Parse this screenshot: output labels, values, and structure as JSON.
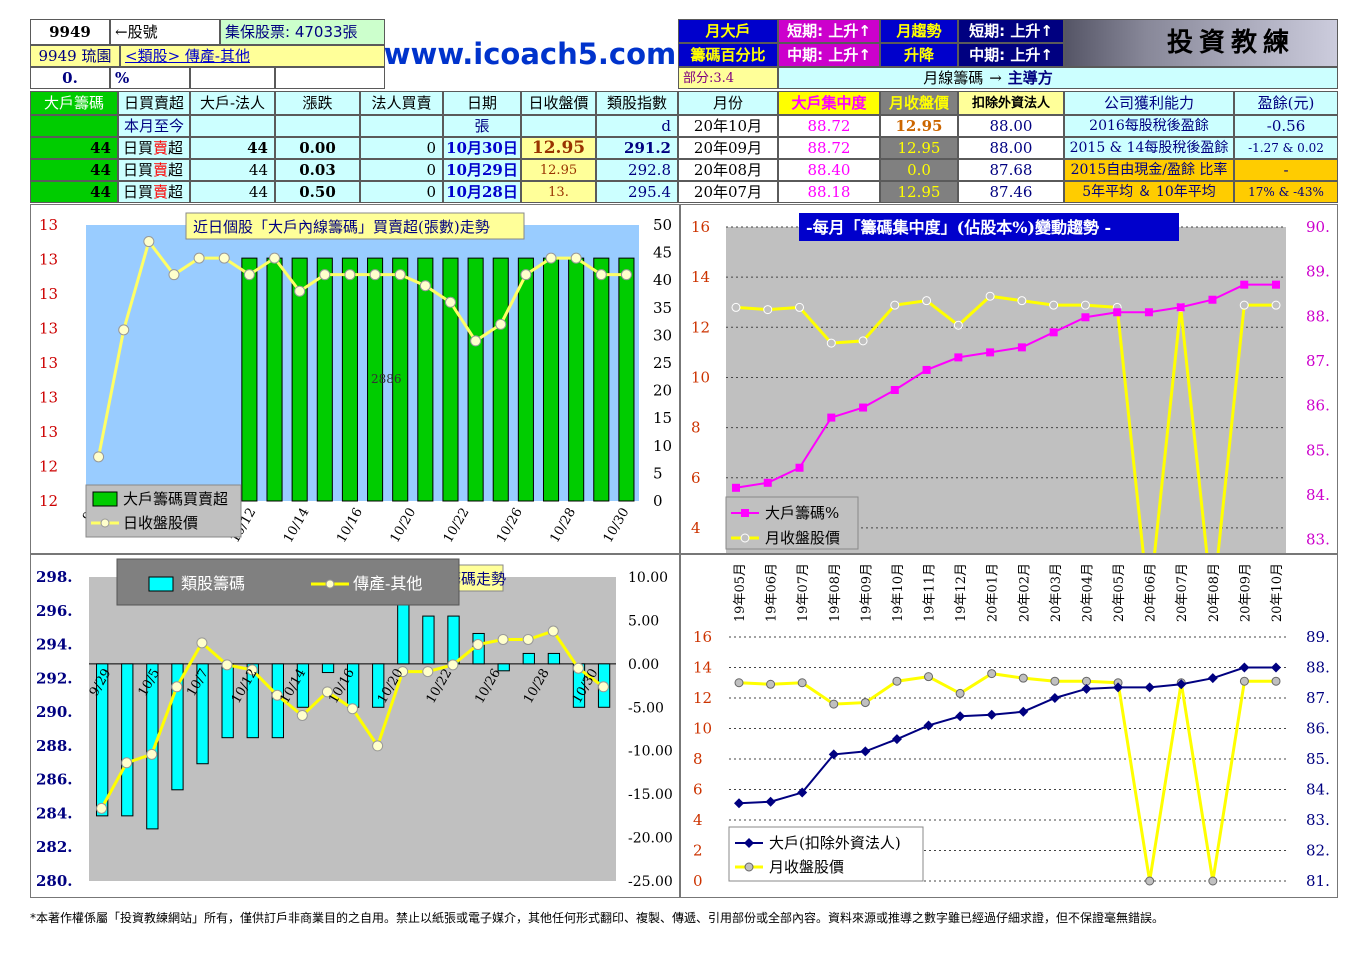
{
  "header": {
    "stock_code": "9949",
    "code_arrow": "←股號",
    "custody_shares": "集保股票: 47033張",
    "stock_name": "9949 琉園",
    "industry_link": "<類股> 傳產-其他",
    "pct_value": "0.",
    "pct_unit": "%",
    "website": "www.icoach5.com",
    "monthly_big_label_1": "月大戶",
    "monthly_big_label_2": "籌碼百分比",
    "short_term_up": "短期: 上升↑",
    "mid_term_up": "中期: 上升↑",
    "monthly_trend_1": "月趨勢",
    "monthly_trend_2": "升降",
    "short_term_up_2": "短期: 上升↑",
    "mid_term_up_2": "中期: 上升↑",
    "logo_text": "投資教練",
    "part_label": "部分:3.4",
    "monthly_chip_label": "月線籌碼",
    "monthly_chip_arrow": "→",
    "monthly_chip_value": "主導方"
  },
  "colors": {
    "green": "#00cc00",
    "yellow": "#ffff00",
    "pink": "#ff00ff",
    "cyan": "#00ffff",
    "navy": "#000080",
    "grey": "#c0c0c0",
    "chart_bg": "#c0c0c0",
    "blue_bg": "#99ccff"
  },
  "table": {
    "headers": [
      "大戶籌碼",
      "日買賣超",
      "大戶-法人",
      "漲跌",
      "法人買賣",
      "日期",
      "日收盤價",
      "類股指數"
    ],
    "ytd_row": [
      "",
      "本月至今",
      "",
      "",
      "",
      "張",
      "",
      "d"
    ],
    "rows": [
      {
        "big": "44",
        "label_pre": "日買",
        "label_red": "賣",
        "label_post": "超",
        "inst": "44",
        "chg": "0.00",
        "legal": "0",
        "date": "10月30日",
        "close": "12.95",
        "index": "291.2"
      },
      {
        "big": "44",
        "label_pre": "日買",
        "label_red": "賣",
        "label_post": "超",
        "inst": "44",
        "chg": "0.03",
        "legal": "0",
        "date": "10月29日",
        "close": "12.95",
        "index": "292.8"
      },
      {
        "big": "44",
        "label_pre": "日買",
        "label_red": "賣",
        "label_post": "超",
        "inst": "44",
        "chg": "0.50",
        "legal": "0",
        "date": "10月28日",
        "close": "13.",
        "index": "295.4"
      }
    ],
    "month_headers": [
      "月份",
      "大戶集中度",
      "月收盤價",
      "扣除外資法人"
    ],
    "month_rows": [
      {
        "month": "20年10月",
        "conc": "88.72",
        "close": "12.95",
        "ex": "88.00"
      },
      {
        "month": "20年09月",
        "conc": "88.72",
        "close": "12.95",
        "ex": "88.00"
      },
      {
        "month": "20年08月",
        "conc": "88.40",
        "close": "0.0",
        "ex": "87.68"
      },
      {
        "month": "20年07月",
        "conc": "88.18",
        "close": "12.95",
        "ex": "87.46"
      }
    ],
    "profit_header": "公司獲利能力",
    "eps_header": "盈餘(元)",
    "profit_rows": [
      {
        "label": "2016每股稅後盈餘",
        "value": "-0.56"
      },
      {
        "label": "2015 & 14每股稅後盈餘",
        "value": "-1.27 & 0.02"
      },
      {
        "label": "2015自由現金/盈餘 比率",
        "value": "-"
      },
      {
        "label": "5年平均 ＆ 10年平均",
        "value": "17% & -43%"
      }
    ]
  },
  "footer": "*本著作權係屬「投資教練網站」所有，僅供訂戶非商業目的之自用。禁止以紙張或電子媒介，其他任何形式翻印、複製、傳遞、引用部份或全部內容。資料來源或推導之數字雖已經過仔細求證，但不保證毫無錯誤。",
  "chart_data": [
    {
      "type": "bar",
      "title": "近日個股「大戶內線籌碼」買賣超(張數)走勢",
      "x_tick_labels": [
        "9/",
        "1",
        "1",
        "10/12",
        "10/14",
        "10/16",
        "10/20",
        "10/22",
        "10/26",
        "10/28",
        "10/30"
      ],
      "watermark": "2886",
      "left_axis_labels": [
        "13",
        "13",
        "13",
        "13",
        "13",
        "13",
        "13",
        "12",
        "12"
      ],
      "right_axis": {
        "min": 0,
        "max": 50,
        "ticks": [
          0,
          5,
          10,
          15,
          20,
          25,
          30,
          35,
          40,
          45,
          50
        ]
      },
      "series": [
        {
          "name": "大戶籌碼買賣超",
          "kind": "bar",
          "values": [
            null,
            null,
            null,
            null,
            null,
            null,
            44,
            44,
            44,
            44,
            44,
            44,
            44,
            44,
            44,
            44,
            44,
            44,
            44,
            44,
            44,
            44
          ]
        },
        {
          "name": "日收盤股價",
          "kind": "line",
          "values": [
            8,
            31,
            47,
            41,
            44,
            44,
            41,
            44,
            38,
            41,
            41,
            41,
            41,
            39,
            36,
            29,
            32,
            41,
            44,
            44,
            41,
            41
          ]
        }
      ]
    },
    {
      "type": "line",
      "title": "-每月「籌碼集中度」(佔股本%)變動趨勢 -",
      "categories": [
        "19年05月",
        "19年06月",
        "19年07月",
        "19年08月",
        "19年09月",
        "19年10月",
        "19年11月",
        "19年12月",
        "20年01月",
        "20年02月",
        "20年03月",
        "20年04月",
        "20年05月",
        "20年06月",
        "20年07月",
        "20年08月",
        "20年09月",
        "20年10月"
      ],
      "left_axis": {
        "min": 3,
        "max": 16,
        "ticks": [
          4,
          6,
          8,
          10,
          12,
          14,
          16
        ]
      },
      "right_axis": {
        "min": 82.7,
        "max": 90,
        "ticks": [
          "83.",
          "84.",
          "85.",
          "86.",
          "87.",
          "88.",
          "89.",
          "90."
        ]
      },
      "series": [
        {
          "name": "大戶籌碼%",
          "axis": "left",
          "values": [
            5.6,
            5.8,
            6.4,
            8.4,
            8.8,
            9.5,
            10.3,
            10.8,
            11.0,
            11.2,
            11.8,
            12.4,
            12.6,
            12.6,
            12.8,
            13.1,
            13.7,
            13.7
          ]
        },
        {
          "name": "月收盤股價",
          "axis": "right",
          "values": [
            88.2,
            88.15,
            88.2,
            87.4,
            87.45,
            88.25,
            88.35,
            87.8,
            88.45,
            88.35,
            88.25,
            88.25,
            88.2,
            81.5,
            88.2,
            81.5,
            88.25,
            88.25
          ]
        }
      ]
    },
    {
      "type": "bar",
      "title": "類股籌碼走勢",
      "x_tick_labels": [
        "9/29",
        "10/5",
        "10/7",
        "10/12",
        "10/14",
        "10/16",
        "10/20",
        "10/22",
        "10/26",
        "10/28",
        "10/30"
      ],
      "left_axis": {
        "min": 280,
        "max": 298,
        "ticks": [
          "280.",
          "282.",
          "284.",
          "286.",
          "288.",
          "290.",
          "292.",
          "294.",
          "296.",
          "298."
        ]
      },
      "right_axis": {
        "min": -25,
        "max": 10,
        "ticks": [
          "-25.00",
          "-20.00",
          "-15.00",
          "-10.00",
          "-5.00",
          "0.00",
          "5.00",
          "10.00"
        ]
      },
      "series": [
        {
          "name": "類股籌碼",
          "axis": "right",
          "kind": "bar",
          "values": [
            -17.5,
            -17.5,
            -19,
            -14.5,
            -11.5,
            -8.5,
            -8.5,
            -8.5,
            -5,
            -1,
            -5,
            -5,
            8,
            5.5,
            5.5,
            3.5,
            -0.8,
            1.2,
            1.2,
            -5,
            -5
          ]
        },
        {
          "name": "傳產-其他",
          "axis": "left",
          "kind": "line",
          "values": [
            284.3,
            287,
            287.5,
            291.5,
            294.1,
            292.8,
            292.5,
            291,
            289.8,
            291.2,
            290.2,
            288,
            292.4,
            292.4,
            292.8,
            294,
            294.3,
            294.3,
            294.8,
            292.6,
            291.5
          ]
        }
      ]
    },
    {
      "type": "line",
      "categories": [
        "19年05月",
        "19年06月",
        "19年07月",
        "19年08月",
        "19年09月",
        "19年10月",
        "19年11月",
        "19年12月",
        "20年01月",
        "20年02月",
        "20年03月",
        "20年04月",
        "20年05月",
        "20年06月",
        "20年07月",
        "20年08月",
        "20年09月",
        "20年10月"
      ],
      "left_axis": {
        "min": 0,
        "max": 16,
        "ticks": [
          0,
          2,
          4,
          6,
          8,
          10,
          12,
          14,
          16
        ]
      },
      "right_axis": {
        "min": 81,
        "max": 89,
        "ticks": [
          "81.",
          "82.",
          "83.",
          "84.",
          "85.",
          "86.",
          "87.",
          "88.",
          "89."
        ]
      },
      "series": [
        {
          "name": "大戶(扣除外資法人)",
          "axis": "left",
          "values": [
            5.1,
            5.2,
            5.8,
            8.3,
            8.5,
            9.3,
            10.2,
            10.8,
            10.9,
            11.1,
            12.0,
            12.6,
            12.7,
            12.7,
            12.9,
            13.3,
            14.0,
            14.0
          ]
        },
        {
          "name": "月收盤股價",
          "axis": "right",
          "values": [
            87.5,
            87.45,
            87.5,
            86.8,
            86.85,
            87.55,
            87.7,
            87.15,
            87.8,
            87.65,
            87.55,
            87.55,
            87.5,
            81,
            87.5,
            81,
            87.55,
            87.55
          ]
        }
      ]
    }
  ]
}
